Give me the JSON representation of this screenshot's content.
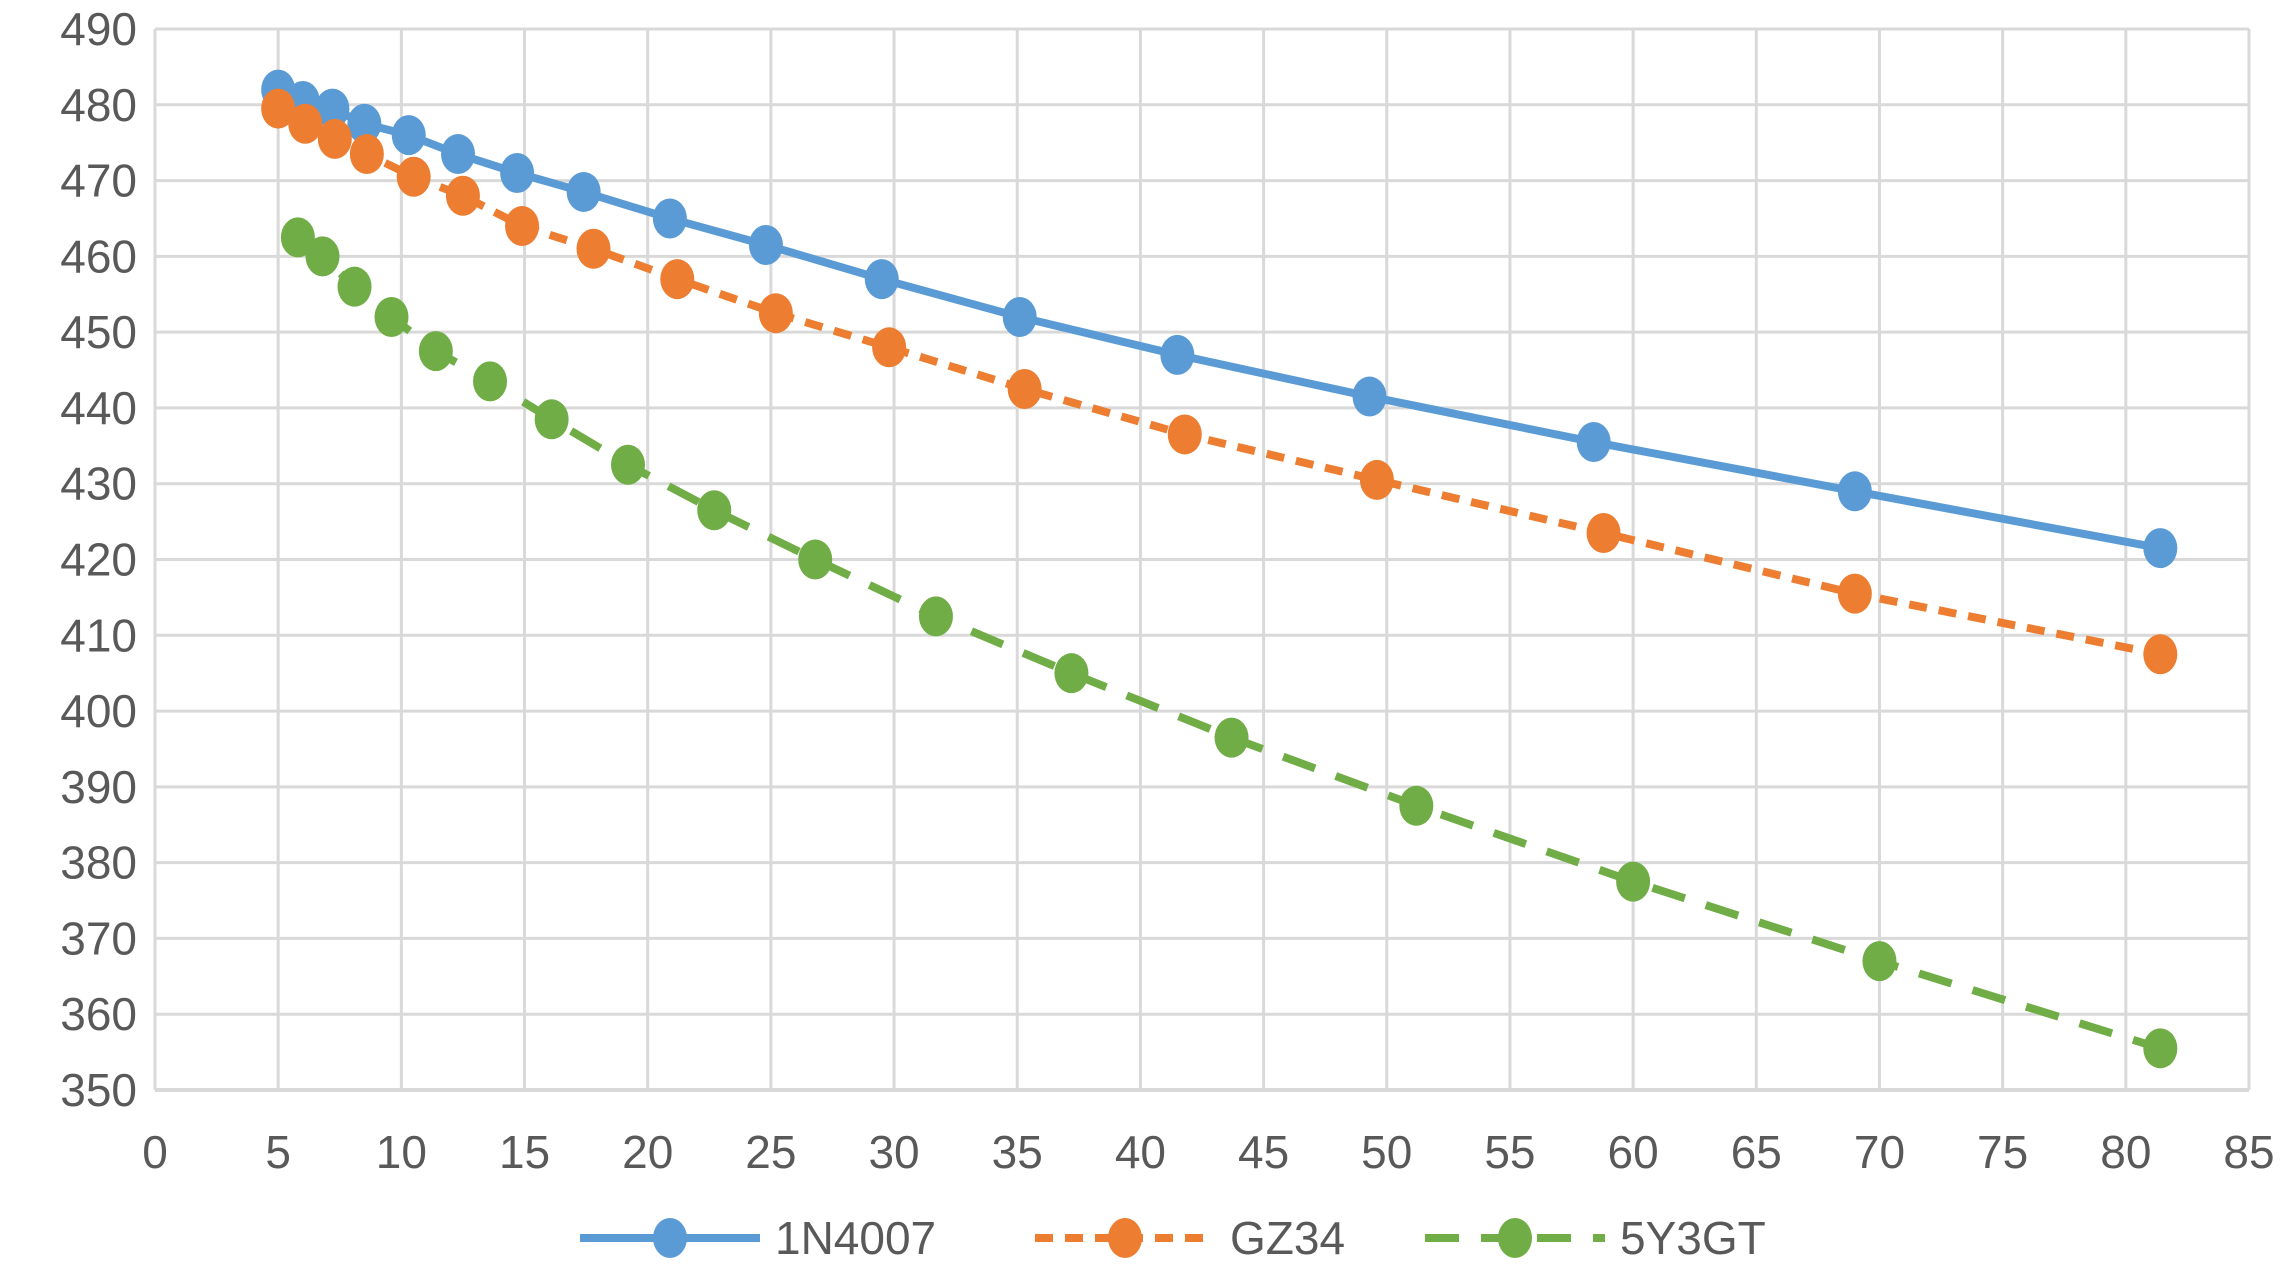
{
  "chart_data": {
    "type": "line",
    "title": "",
    "xlabel": "",
    "ylabel": "",
    "xlim": [
      0,
      85
    ],
    "ylim": [
      350,
      490
    ],
    "x_ticks": [
      0,
      5,
      10,
      15,
      20,
      25,
      30,
      35,
      40,
      45,
      50,
      55,
      60,
      65,
      70,
      75,
      80,
      85
    ],
    "y_ticks": [
      350,
      360,
      370,
      380,
      390,
      400,
      410,
      420,
      430,
      440,
      450,
      460,
      470,
      480,
      490
    ],
    "grid": true,
    "legend_position": "bottom",
    "series": [
      {
        "name": "1N4007",
        "color": "#5B9BD5",
        "line_style": "solid",
        "x": [
          5.0,
          6.0,
          7.2,
          8.5,
          10.3,
          12.3,
          14.7,
          17.4,
          20.9,
          24.8,
          29.5,
          35.1,
          41.5,
          49.3,
          58.4,
          69.0,
          81.4
        ],
        "y": [
          482,
          480.5,
          479.5,
          477.5,
          476,
          473.5,
          471,
          468.5,
          465,
          461.5,
          457,
          452,
          447,
          441.5,
          435.5,
          429,
          421.5
        ]
      },
      {
        "name": "GZ34",
        "color": "#ED7D31",
        "line_style": "dashed",
        "x": [
          5.0,
          6.1,
          7.3,
          8.6,
          10.5,
          12.5,
          14.9,
          17.8,
          21.2,
          25.2,
          29.8,
          35.3,
          41.8,
          49.6,
          58.8,
          69.0,
          81.4
        ],
        "y": [
          479.5,
          477.5,
          475.5,
          473.5,
          470.5,
          468,
          464,
          461,
          457,
          452.5,
          448,
          442.5,
          436.5,
          430.5,
          423.5,
          415.5,
          407.5
        ]
      },
      {
        "name": "5Y3GT",
        "color": "#70AD47",
        "line_style": "long-dashed",
        "x": [
          5.8,
          6.8,
          8.1,
          9.6,
          11.4,
          13.6,
          16.1,
          19.2,
          22.7,
          26.8,
          31.7,
          37.2,
          43.7,
          51.2,
          60.0,
          70.0,
          81.4
        ],
        "y": [
          462.5,
          460,
          456,
          452,
          447.5,
          443.5,
          438.5,
          432.5,
          426.5,
          420,
          412.5,
          405,
          396.5,
          387.5,
          377.5,
          367,
          355.5
        ]
      }
    ]
  }
}
